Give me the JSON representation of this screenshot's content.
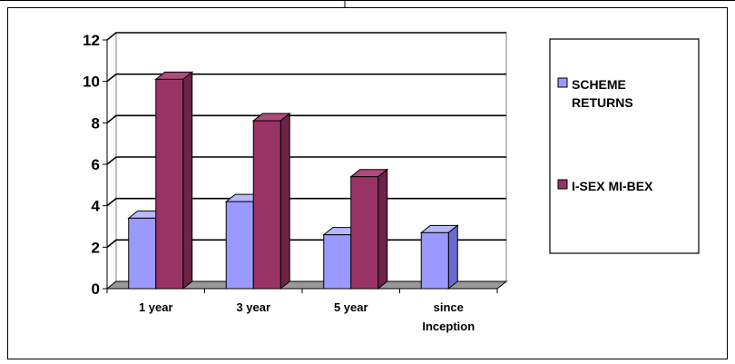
{
  "chart_data": {
    "type": "bar",
    "categories": [
      [
        "1 year"
      ],
      [
        "3 year"
      ],
      [
        "5 year"
      ],
      [
        "since",
        "Inception"
      ]
    ],
    "series": [
      {
        "name": [
          "SCHEME",
          "RETURNS"
        ],
        "values": [
          3.4,
          4.2,
          2.6,
          2.7
        ],
        "color": "#9999ff",
        "side_color": "#6b6bd0",
        "top_color": "#b8b8ff"
      },
      {
        "name": [
          "I-SEX MI-BEX"
        ],
        "values": [
          10.1,
          8.1,
          5.4,
          null
        ],
        "color": "#993366",
        "side_color": "#6e2349",
        "top_color": "#b04a7c"
      }
    ],
    "yticks": [
      "0",
      "2",
      "4",
      "6",
      "8",
      "10",
      "12"
    ],
    "ylim": [
      0,
      12
    ],
    "grid": true,
    "legend_position": "right",
    "title": "",
    "xlabel": "",
    "ylabel": ""
  }
}
